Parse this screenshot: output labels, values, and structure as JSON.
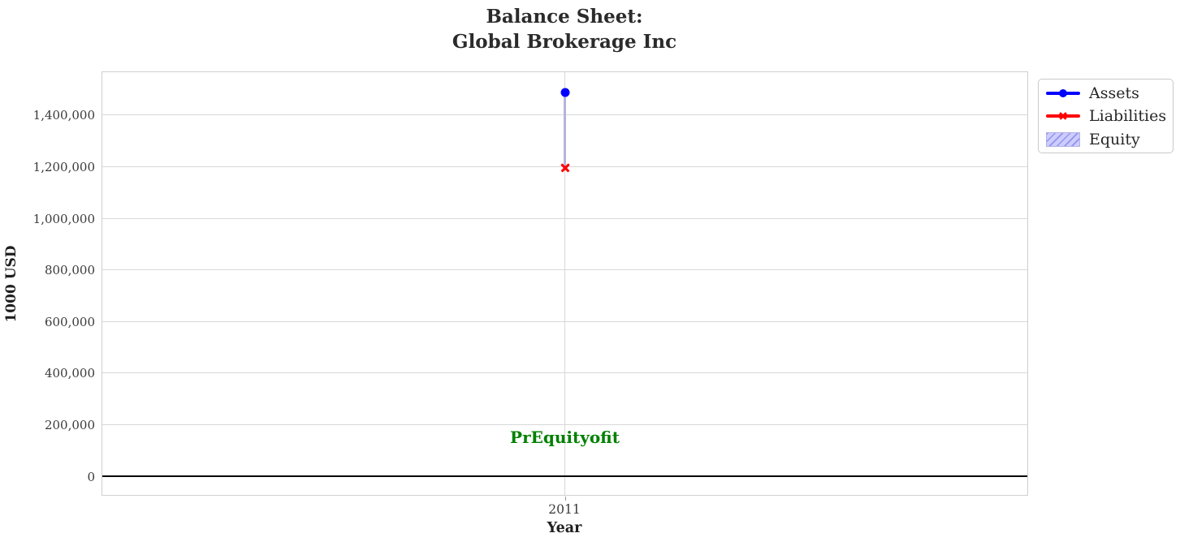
{
  "title": {
    "line1": "Balance Sheet:",
    "line2": "Global Brokerage Inc"
  },
  "chart_data": {
    "type": "line",
    "title": "Balance Sheet: Global Brokerage Inc",
    "xlabel": "Year",
    "ylabel": "1000 USD",
    "categories": [
      "2011"
    ],
    "series": [
      {
        "name": "Assets",
        "values": [
          1485000
        ],
        "color": "#0000ff",
        "marker": "circle"
      },
      {
        "name": "Liabilities",
        "values": [
          1195000
        ],
        "color": "#ff0000",
        "marker": "x"
      },
      {
        "name": "Equity",
        "values": [
          290000
        ],
        "color": "#ccccff",
        "style": "hatched-band",
        "band_between": [
          "Liabilities",
          "Assets"
        ]
      }
    ],
    "ylim": [
      -73000,
      1564000
    ],
    "yticks": [
      0,
      200000,
      400000,
      600000,
      800000,
      1000000,
      1200000,
      1400000
    ],
    "ytick_labels": [
      "0",
      "200,000",
      "400,000",
      "600,000",
      "800,000",
      "1,000,000",
      "1,200,000",
      "1,400,000"
    ],
    "grid": true,
    "legend_position": "outside-upper-right",
    "zero_line": {
      "y": 0,
      "color": "#000000"
    },
    "annotation": {
      "text": "PrEquityofit",
      "x": "2011",
      "y": 150000,
      "color": "#008000"
    },
    "colors": {
      "grid": "#d8d8d8",
      "spine": "#cfcfcf",
      "equity_band": "#b4b4dc",
      "text": "#262626"
    }
  }
}
